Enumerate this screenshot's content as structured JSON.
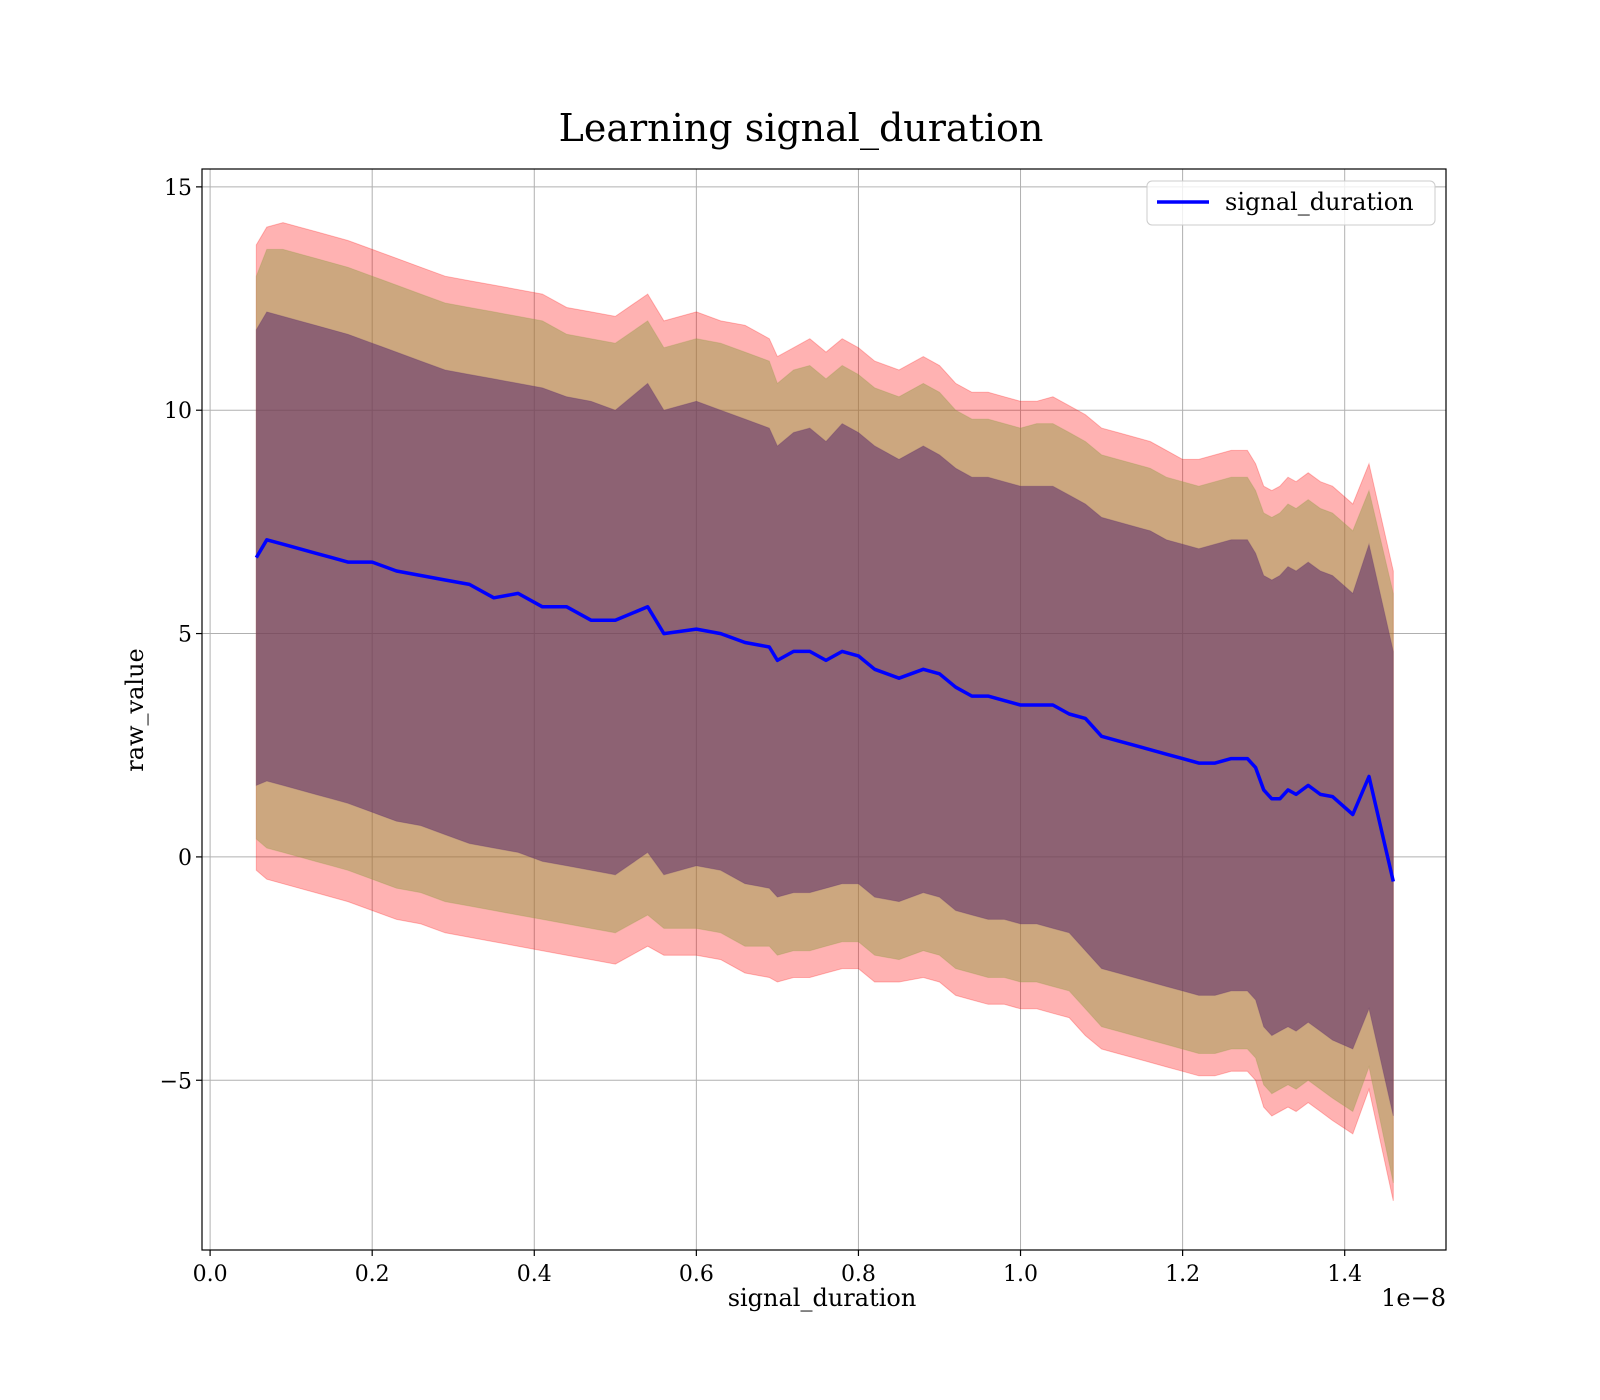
{
  "chart_data": {
    "type": "line",
    "title": "Learning signal_duration",
    "xlabel": "signal_duration",
    "ylabel": "raw_value",
    "x_offset_label": "1e−8",
    "x_scale_multiplier": 1e-08,
    "xlim": [
      -0.01,
      1.525
    ],
    "ylim": [
      -8.8,
      15.4
    ],
    "grid": true,
    "legend_position": "top-right",
    "x_ticks": [
      0.0,
      0.2,
      0.4,
      0.6,
      0.8,
      1.0,
      1.2,
      1.4
    ],
    "x_tick_labels": [
      "0.0",
      "0.2",
      "0.4",
      "0.6",
      "0.8",
      "1.0",
      "1.2",
      "1.4"
    ],
    "y_ticks": [
      -5,
      0,
      5,
      10,
      15
    ],
    "y_tick_labels": [
      "−5",
      "0",
      "5",
      "10",
      "15"
    ],
    "colors": {
      "line": "#0000ff",
      "band_outer": "#ff0000",
      "band_middle": "#8f9a40",
      "band_inner": "#5a2a6a",
      "grid": "#b0b0b0"
    },
    "series": [
      {
        "name": "signal_duration",
        "x": [
          0.057,
          0.07,
          0.09,
          0.11,
          0.13,
          0.15,
          0.17,
          0.2,
          0.23,
          0.26,
          0.29,
          0.32,
          0.35,
          0.38,
          0.41,
          0.44,
          0.47,
          0.5,
          0.54,
          0.56,
          0.6,
          0.63,
          0.66,
          0.69,
          0.7,
          0.72,
          0.74,
          0.76,
          0.78,
          0.8,
          0.82,
          0.85,
          0.88,
          0.9,
          0.92,
          0.94,
          0.96,
          0.98,
          1.0,
          1.02,
          1.04,
          1.06,
          1.08,
          1.1,
          1.12,
          1.14,
          1.16,
          1.18,
          1.2,
          1.22,
          1.24,
          1.26,
          1.28,
          1.29,
          1.3,
          1.31,
          1.32,
          1.33,
          1.34,
          1.355,
          1.37,
          1.385,
          1.41,
          1.43,
          1.46
        ],
        "y": [
          6.7,
          7.1,
          7.0,
          6.9,
          6.8,
          6.7,
          6.6,
          6.6,
          6.4,
          6.3,
          6.2,
          6.1,
          5.8,
          5.9,
          5.6,
          5.6,
          5.3,
          5.3,
          5.6,
          5.0,
          5.1,
          5.0,
          4.8,
          4.7,
          4.4,
          4.6,
          4.6,
          4.4,
          4.6,
          4.5,
          4.2,
          4.0,
          4.2,
          4.1,
          3.8,
          3.6,
          3.6,
          3.5,
          3.4,
          3.4,
          3.4,
          3.2,
          3.1,
          2.7,
          2.6,
          2.5,
          2.4,
          2.3,
          2.2,
          2.1,
          2.1,
          2.2,
          2.2,
          2.0,
          1.5,
          1.3,
          1.3,
          1.5,
          1.4,
          1.6,
          1.4,
          1.35,
          0.95,
          1.8,
          -0.55
        ]
      }
    ],
    "bands": [
      {
        "layer": "outer",
        "lower": [
          -0.3,
          -0.5,
          -0.6,
          -0.7,
          -0.8,
          -0.9,
          -1.0,
          -1.2,
          -1.4,
          -1.5,
          -1.7,
          -1.8,
          -1.9,
          -2.0,
          -2.1,
          -2.2,
          -2.3,
          -2.4,
          -2.0,
          -2.2,
          -2.2,
          -2.3,
          -2.6,
          -2.7,
          -2.8,
          -2.7,
          -2.7,
          -2.6,
          -2.5,
          -2.5,
          -2.8,
          -2.8,
          -2.7,
          -2.8,
          -3.1,
          -3.2,
          -3.3,
          -3.3,
          -3.4,
          -3.4,
          -3.5,
          -3.6,
          -4.0,
          -4.3,
          -4.4,
          -4.5,
          -4.6,
          -4.7,
          -4.8,
          -4.9,
          -4.9,
          -4.8,
          -4.8,
          -5.0,
          -5.6,
          -5.8,
          -5.7,
          -5.6,
          -5.7,
          -5.5,
          -5.7,
          -5.9,
          -6.2,
          -5.2,
          -7.7
        ],
        "upper": [
          13.7,
          14.1,
          14.2,
          14.1,
          14.0,
          13.9,
          13.8,
          13.6,
          13.4,
          13.2,
          13.0,
          12.9,
          12.8,
          12.7,
          12.6,
          12.3,
          12.2,
          12.1,
          12.6,
          12.0,
          12.2,
          12.0,
          11.9,
          11.6,
          11.2,
          11.4,
          11.6,
          11.3,
          11.6,
          11.4,
          11.1,
          10.9,
          11.2,
          11.0,
          10.6,
          10.4,
          10.4,
          10.3,
          10.2,
          10.2,
          10.3,
          10.1,
          9.9,
          9.6,
          9.5,
          9.4,
          9.3,
          9.1,
          8.9,
          8.9,
          9.0,
          9.1,
          9.1,
          8.8,
          8.3,
          8.2,
          8.3,
          8.5,
          8.4,
          8.6,
          8.4,
          8.3,
          7.9,
          8.8,
          6.4
        ]
      },
      {
        "layer": "middle",
        "lower": [
          0.4,
          0.2,
          0.1,
          0.0,
          -0.1,
          -0.2,
          -0.3,
          -0.5,
          -0.7,
          -0.8,
          -1.0,
          -1.1,
          -1.2,
          -1.3,
          -1.4,
          -1.5,
          -1.6,
          -1.7,
          -1.3,
          -1.6,
          -1.6,
          -1.7,
          -2.0,
          -2.0,
          -2.2,
          -2.1,
          -2.1,
          -2.0,
          -1.9,
          -1.9,
          -2.2,
          -2.3,
          -2.1,
          -2.2,
          -2.5,
          -2.6,
          -2.7,
          -2.7,
          -2.8,
          -2.8,
          -2.9,
          -3.0,
          -3.4,
          -3.8,
          -3.9,
          -4.0,
          -4.1,
          -4.2,
          -4.3,
          -4.4,
          -4.4,
          -4.3,
          -4.3,
          -4.5,
          -5.1,
          -5.3,
          -5.2,
          -5.1,
          -5.2,
          -5.0,
          -5.2,
          -5.4,
          -5.7,
          -4.7,
          -7.3
        ],
        "upper": [
          13.0,
          13.6,
          13.6,
          13.5,
          13.4,
          13.3,
          13.2,
          13.0,
          12.8,
          12.6,
          12.4,
          12.3,
          12.2,
          12.1,
          12.0,
          11.7,
          11.6,
          11.5,
          12.0,
          11.4,
          11.6,
          11.5,
          11.3,
          11.1,
          10.6,
          10.9,
          11.0,
          10.7,
          11.0,
          10.8,
          10.5,
          10.3,
          10.6,
          10.4,
          10.0,
          9.8,
          9.8,
          9.7,
          9.6,
          9.7,
          9.7,
          9.5,
          9.3,
          9.0,
          8.9,
          8.8,
          8.7,
          8.5,
          8.4,
          8.3,
          8.4,
          8.5,
          8.5,
          8.2,
          7.7,
          7.6,
          7.7,
          7.9,
          7.8,
          8.0,
          7.8,
          7.7,
          7.3,
          8.2,
          5.9
        ]
      },
      {
        "layer": "inner",
        "lower": [
          1.6,
          1.7,
          1.6,
          1.5,
          1.4,
          1.3,
          1.2,
          1.0,
          0.8,
          0.7,
          0.5,
          0.3,
          0.2,
          0.1,
          -0.1,
          -0.2,
          -0.3,
          -0.4,
          0.1,
          -0.4,
          -0.2,
          -0.3,
          -0.6,
          -0.7,
          -0.9,
          -0.8,
          -0.8,
          -0.7,
          -0.6,
          -0.6,
          -0.9,
          -1.0,
          -0.8,
          -0.9,
          -1.2,
          -1.3,
          -1.4,
          -1.4,
          -1.5,
          -1.5,
          -1.6,
          -1.7,
          -2.1,
          -2.5,
          -2.6,
          -2.7,
          -2.8,
          -2.9,
          -3.0,
          -3.1,
          -3.1,
          -3.0,
          -3.0,
          -3.2,
          -3.8,
          -4.0,
          -3.9,
          -3.8,
          -3.9,
          -3.7,
          -3.9,
          -4.1,
          -4.3,
          -3.4,
          -5.8
        ],
        "upper": [
          11.8,
          12.2,
          12.1,
          12.0,
          11.9,
          11.8,
          11.7,
          11.5,
          11.3,
          11.1,
          10.9,
          10.8,
          10.7,
          10.6,
          10.5,
          10.3,
          10.2,
          10.0,
          10.6,
          10.0,
          10.2,
          10.0,
          9.8,
          9.6,
          9.2,
          9.5,
          9.6,
          9.3,
          9.7,
          9.5,
          9.2,
          8.9,
          9.2,
          9.0,
          8.7,
          8.5,
          8.5,
          8.4,
          8.3,
          8.3,
          8.3,
          8.1,
          7.9,
          7.6,
          7.5,
          7.4,
          7.3,
          7.1,
          7.0,
          6.9,
          7.0,
          7.1,
          7.1,
          6.8,
          6.3,
          6.2,
          6.3,
          6.5,
          6.4,
          6.6,
          6.4,
          6.3,
          5.9,
          7.0,
          4.6
        ]
      }
    ]
  }
}
